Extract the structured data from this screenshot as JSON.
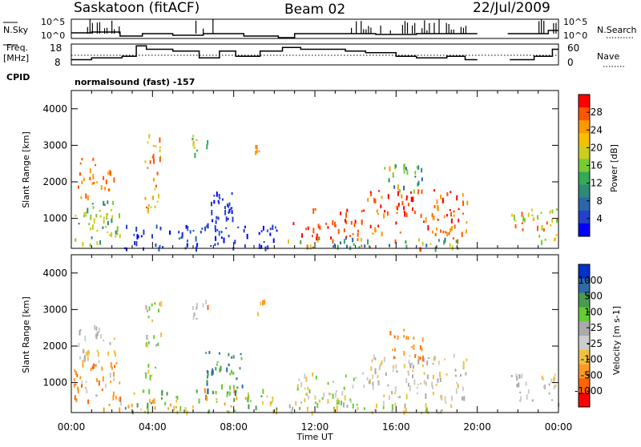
{
  "header": {
    "station": "Saskatoon (fitACF)",
    "beam": "Beam 02",
    "date": "22/Jul/2009"
  },
  "top_labels": {
    "nsky": "N.Sky",
    "freq_line1": "Freq.",
    "freq_line2": "[MHz]",
    "cpid": "CPID",
    "nsearch": "N.Search",
    "nave": "Nave",
    "nsky_ticks": [
      "10^5",
      "10^0"
    ],
    "nsearch_ticks": [
      "10^5",
      "10^0"
    ],
    "freq_ticks": [
      "18",
      "8"
    ],
    "nave_ticks": [
      "60",
      "0"
    ],
    "cpid_text": "normalsound (fast) -157"
  },
  "chart_data": [
    {
      "type": "heatmap",
      "name": "power",
      "ylabel": "Slant Range [km]",
      "xlabel": "Time UT",
      "colorbar_label": "Power [dB]",
      "colorbar_ticks": [
        "28",
        "24",
        "20",
        "16",
        "12",
        "8",
        "4"
      ],
      "colorbar_colors": [
        "#ff0000",
        "#ff5500",
        "#ff9900",
        "#f5c000",
        "#cccc22",
        "#77cc33",
        "#33aa55",
        "#2d8a7a",
        "#2a66aa",
        "#2240cc",
        "#0000ff"
      ],
      "yticks": [
        "1000",
        "2000",
        "3000",
        "4000"
      ],
      "ylim": [
        180,
        4500
      ],
      "xlim": [
        0,
        24
      ],
      "regions": [
        {
          "t0": 0.1,
          "t1": 2.4,
          "r0": 300,
          "r1": 1500,
          "c": [
            4,
            5,
            7
          ]
        },
        {
          "t0": 0.3,
          "t1": 1.2,
          "r0": 1600,
          "r1": 2700,
          "c": [
            1,
            2
          ]
        },
        {
          "t0": 1.2,
          "t1": 2.3,
          "r0": 1800,
          "r1": 2400,
          "c": [
            1,
            2,
            3
          ]
        },
        {
          "t0": 2.6,
          "t1": 10.1,
          "r0": 200,
          "r1": 850,
          "c": [
            9,
            10,
            9,
            8
          ]
        },
        {
          "t0": 6.6,
          "t1": 8.0,
          "r0": 700,
          "r1": 1900,
          "c": [
            10,
            9,
            9
          ]
        },
        {
          "t0": 3.6,
          "t1": 4.4,
          "r0": 1200,
          "r1": 3400,
          "c": [
            1,
            2,
            4
          ]
        },
        {
          "t0": 5.9,
          "t1": 6.7,
          "r0": 2700,
          "r1": 3300,
          "c": [
            2,
            4,
            6
          ]
        },
        {
          "t0": 9.0,
          "t1": 9.6,
          "r0": 2800,
          "r1": 3300,
          "c": [
            1,
            2
          ]
        },
        {
          "t0": 10.6,
          "t1": 20.0,
          "r0": 200,
          "r1": 500,
          "c": [
            1,
            4,
            6,
            8
          ]
        },
        {
          "t0": 10.8,
          "t1": 14.5,
          "r0": 500,
          "r1": 1300,
          "c": [
            0,
            1
          ]
        },
        {
          "t0": 14.5,
          "t1": 19.5,
          "r0": 600,
          "r1": 1800,
          "c": [
            0,
            1,
            2
          ]
        },
        {
          "t0": 15.4,
          "t1": 17.3,
          "r0": 1700,
          "r1": 2500,
          "c": [
            2,
            5,
            7,
            8
          ]
        },
        {
          "t0": 21.6,
          "t1": 24.0,
          "r0": 400,
          "r1": 1300,
          "c": [
            1,
            3,
            5
          ]
        }
      ]
    },
    {
      "type": "heatmap",
      "name": "velocity",
      "ylabel": "Slant Range [km]",
      "xlabel": "Time UT",
      "colorbar_label": "Velocity [m s-1]",
      "colorbar_ticks": [
        "1000",
        "500",
        "100",
        "25",
        "-25",
        "-100",
        "-500",
        "-1000"
      ],
      "colorbar_colors": [
        "#0033cc",
        "#2d6aa8",
        "#4a9a50",
        "#66cc33",
        "#aaaaaa",
        "#cccccc",
        "#f0c040",
        "#ff9922",
        "#ff6600",
        "#ff0000"
      ],
      "yticks": [
        "1000",
        "2000",
        "3000",
        "4000"
      ],
      "ylim": [
        180,
        4500
      ],
      "xlim": [
        0,
        24
      ],
      "regions": [
        {
          "t0": 0.1,
          "t1": 2.4,
          "r0": 300,
          "r1": 1600,
          "c": [
            7,
            8,
            7,
            5
          ]
        },
        {
          "t0": 0.3,
          "t1": 2.3,
          "r0": 1600,
          "r1": 2600,
          "c": [
            4,
            5,
            6
          ]
        },
        {
          "t0": 2.6,
          "t1": 10.1,
          "r0": 200,
          "r1": 850,
          "c": [
            2,
            3,
            6,
            7
          ]
        },
        {
          "t0": 6.6,
          "t1": 8.4,
          "r0": 700,
          "r1": 1900,
          "c": [
            1,
            2,
            3
          ]
        },
        {
          "t0": 3.6,
          "t1": 4.4,
          "r0": 1200,
          "r1": 3400,
          "c": [
            3,
            4,
            6
          ]
        },
        {
          "t0": 5.9,
          "t1": 6.7,
          "r0": 2700,
          "r1": 3300,
          "c": [
            4,
            5,
            8
          ]
        },
        {
          "t0": 9.0,
          "t1": 9.6,
          "r0": 2800,
          "r1": 3300,
          "c": [
            6,
            7
          ]
        },
        {
          "t0": 10.6,
          "t1": 20.0,
          "r0": 200,
          "r1": 500,
          "c": [
            6,
            5,
            4,
            3
          ]
        },
        {
          "t0": 10.8,
          "t1": 14.5,
          "r0": 500,
          "r1": 1300,
          "c": [
            5,
            6,
            3
          ]
        },
        {
          "t0": 14.5,
          "t1": 19.5,
          "r0": 600,
          "r1": 1800,
          "c": [
            4,
            5,
            6
          ]
        },
        {
          "t0": 15.4,
          "t1": 17.3,
          "r0": 1700,
          "r1": 2500,
          "c": [
            7,
            8,
            7
          ]
        },
        {
          "t0": 21.6,
          "t1": 24.0,
          "r0": 400,
          "r1": 1300,
          "c": [
            4,
            5,
            6
          ]
        }
      ]
    }
  ],
  "time_ticks": [
    "00:00",
    "04:00",
    "08:00",
    "12:00",
    "16:00",
    "20:00",
    "00:00"
  ],
  "nsky_series": [
    {
      "t": 0.0,
      "v": 0.35
    },
    {
      "t": 1.0,
      "v": 0.4
    },
    {
      "t": 2.4,
      "v": 0.15
    },
    {
      "t": 3.5,
      "v": 0.3
    },
    {
      "t": 5.0,
      "v": 0.2
    },
    {
      "t": 6.5,
      "v": 0.3
    },
    {
      "t": 8.5,
      "v": 0.15
    },
    {
      "t": 10.2,
      "v": 0.05
    },
    {
      "t": 11.0,
      "v": 0.3
    },
    {
      "t": 15.0,
      "v": 0.25
    },
    {
      "t": 17.0,
      "v": 0.3
    },
    {
      "t": 20.0,
      "v": 0.05
    },
    {
      "t": 21.5,
      "v": 0.3
    },
    {
      "t": 23.5,
      "v": 0.5
    }
  ],
  "freq_series": [
    {
      "t": 0.0,
      "v": 10
    },
    {
      "t": 1.0,
      "v": 11
    },
    {
      "t": 2.5,
      "v": 12
    },
    {
      "t": 3.2,
      "v": 18
    },
    {
      "t": 3.7,
      "v": 16
    },
    {
      "t": 5.0,
      "v": 15
    },
    {
      "t": 6.3,
      "v": 11
    },
    {
      "t": 7.3,
      "v": 15
    },
    {
      "t": 8.1,
      "v": 12
    },
    {
      "t": 9.3,
      "v": 15
    },
    {
      "t": 10.4,
      "v": 17
    },
    {
      "t": 11.3,
      "v": 16
    },
    {
      "t": 13.5,
      "v": 15
    },
    {
      "t": 14.5,
      "v": 14
    },
    {
      "t": 16.0,
      "v": 12
    },
    {
      "t": 17.0,
      "v": 11
    },
    {
      "t": 18.5,
      "v": 12
    },
    {
      "t": 19.4,
      "v": 10
    },
    {
      "t": 20.0,
      "v": 8
    },
    {
      "t": 21.6,
      "v": 10
    },
    {
      "t": 22.8,
      "v": 12
    },
    {
      "t": 23.7,
      "v": 16
    }
  ]
}
